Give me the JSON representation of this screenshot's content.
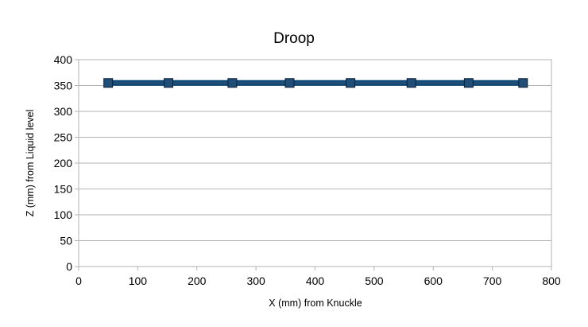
{
  "chart_data": {
    "type": "line",
    "title": "Droop",
    "xlabel": "X (mm) from Knuckle",
    "ylabel": "Z (mm) from Liquid level",
    "xlim": [
      0,
      800
    ],
    "ylim": [
      0,
      400
    ],
    "xticks": [
      "0",
      "100",
      "200",
      "300",
      "400",
      "500",
      "600",
      "700",
      "800"
    ],
    "yticks": [
      "0",
      "50",
      "100",
      "150",
      "200",
      "250",
      "300",
      "350",
      "400"
    ],
    "grid": "horizontal",
    "legend": "none",
    "series": [
      {
        "color": "#1f4e79",
        "marker": "square",
        "x": [
          50,
          152,
          260,
          357,
          460,
          563,
          660,
          752
        ],
        "y": [
          355,
          355,
          355,
          355,
          355,
          355,
          355,
          355
        ]
      }
    ]
  }
}
